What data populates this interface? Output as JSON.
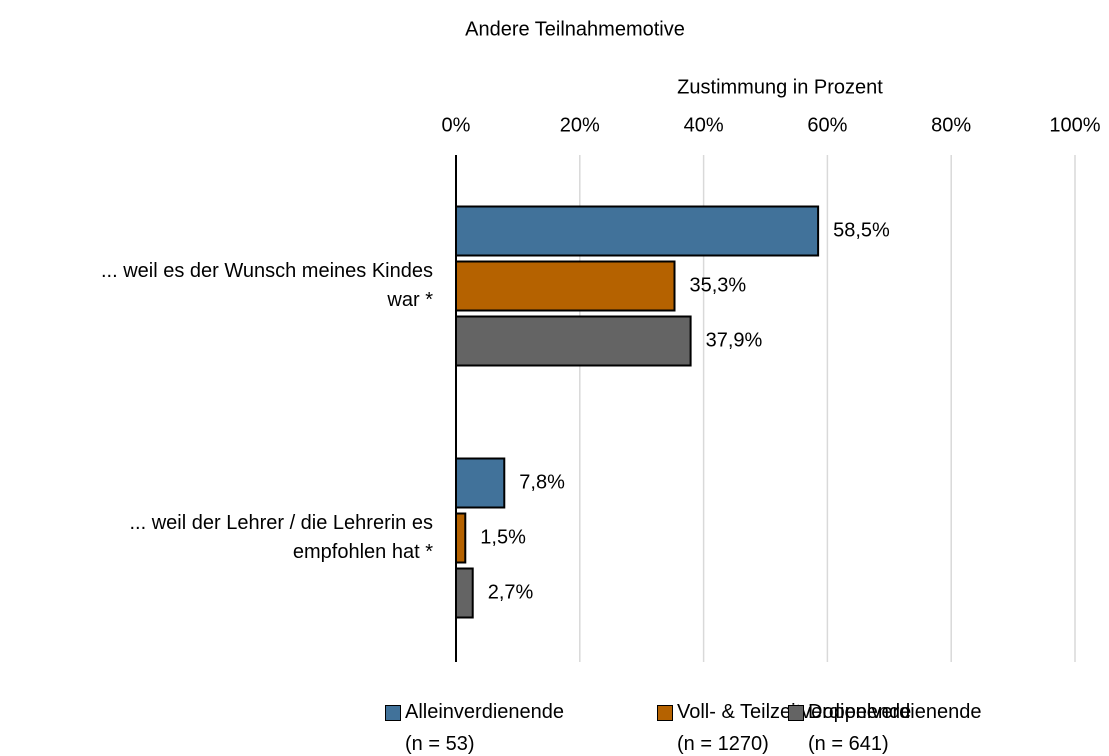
{
  "chart_data": {
    "type": "barh",
    "title": "Andere Teilnahmemotive",
    "x_label": "Zustimmung in Prozent",
    "categories": [
      "... weil es der Wunsch meines Kindes\nwar *",
      "... weil der Lehrer / die Lehrerin es\nempfohlen hat *"
    ],
    "series": [
      {
        "name": "Alleinverdienende\n(n = 53)",
        "color": "#41729a",
        "values": [
          58.5,
          7.8
        ],
        "value_labels": [
          "58,5%",
          "7,8%"
        ]
      },
      {
        "name": "Voll- & Teilzeitverdienende\n(n = 1270)",
        "color": "#b56200",
        "values": [
          35.3,
          1.5
        ],
        "value_labels": [
          "35,3%",
          "1,5%"
        ]
      },
      {
        "name": "Doppelverdienende\n(n = 641)",
        "color": "#646464",
        "values": [
          37.9,
          2.7
        ],
        "value_labels": [
          "37,9%",
          "2,7%"
        ]
      }
    ],
    "xlim": [
      0,
      100
    ],
    "xticks": [
      {
        "value": 0,
        "label": "0%"
      },
      {
        "value": 20,
        "label": "20%"
      },
      {
        "value": 40,
        "label": "40%"
      },
      {
        "value": 60,
        "label": "60%"
      },
      {
        "value": 80,
        "label": "80%"
      },
      {
        "value": 100,
        "label": "100%"
      }
    ],
    "grid": true,
    "legend": "bottom"
  }
}
